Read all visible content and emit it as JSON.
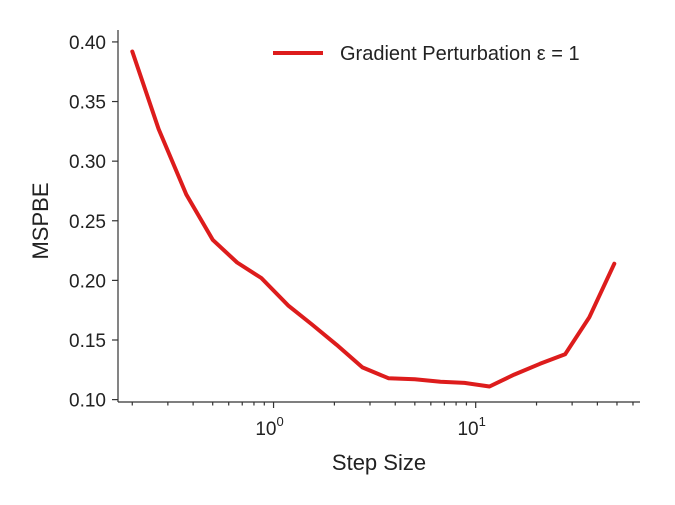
{
  "chart_data": {
    "type": "line",
    "xscale": "log",
    "xlabel": "Step Size",
    "ylabel": "MSPBE",
    "xlim": [
      0.17,
      65
    ],
    "ylim": [
      0.098,
      0.41
    ],
    "xticks": [
      {
        "value": 1,
        "base": "10",
        "exp": "0"
      },
      {
        "value": 10,
        "base": "10",
        "exp": "1"
      }
    ],
    "yticks": [
      {
        "value": 0.1,
        "label": "0.10"
      },
      {
        "value": 0.15,
        "label": "0.15"
      },
      {
        "value": 0.2,
        "label": "0.20"
      },
      {
        "value": 0.25,
        "label": "0.25"
      },
      {
        "value": 0.3,
        "label": "0.30"
      },
      {
        "value": 0.35,
        "label": "0.35"
      },
      {
        "value": 0.4,
        "label": "0.40"
      }
    ],
    "grid": false,
    "legend_position": "top-right",
    "series": [
      {
        "name": "Gradient Perturbation ε = 1",
        "color": "#dd1c1c",
        "x": [
          0.2,
          0.27,
          0.37,
          0.5,
          0.66,
          0.87,
          1.18,
          1.55,
          2.05,
          2.75,
          3.7,
          5.0,
          6.7,
          8.8,
          11.7,
          15.5,
          20.8,
          27.7,
          36.5,
          48.5
        ],
        "y": [
          0.392,
          0.327,
          0.272,
          0.234,
          0.215,
          0.202,
          0.179,
          0.163,
          0.146,
          0.127,
          0.118,
          0.117,
          0.115,
          0.114,
          0.111,
          0.121,
          0.13,
          0.138,
          0.169,
          0.214
        ]
      }
    ]
  }
}
